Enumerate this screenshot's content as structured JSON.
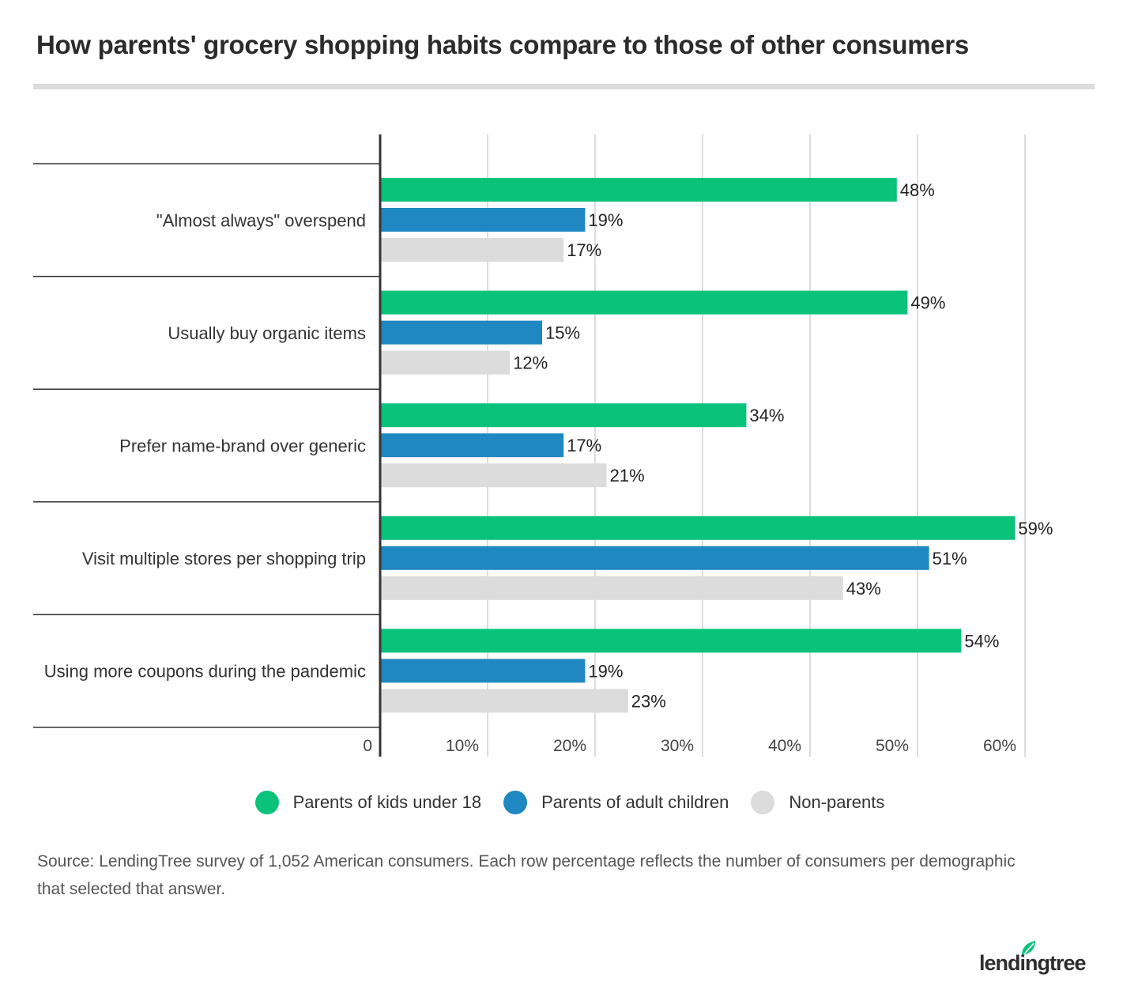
{
  "title": "How parents' grocery shopping habits compare to those of other consumers",
  "colors": {
    "parents_kids_under_18": "#0bc27a",
    "parents_adult_children": "#1f87c2",
    "non_parents": "#dcdcdc",
    "grid": "#dddddd",
    "axis": "#333333"
  },
  "chart_data": {
    "type": "bar",
    "orientation": "horizontal",
    "categories": [
      "\"Almost always\" overspend",
      "Usually buy organic items",
      "Prefer name-brand over generic",
      "Visit multiple stores per shopping trip",
      "Using more coupons during the pandemic"
    ],
    "series": [
      {
        "name": "Parents of kids under 18",
        "color": "#0bc27a",
        "values": [
          48,
          49,
          34,
          59,
          54
        ],
        "labels": [
          "48%",
          "49%",
          "34%",
          "59%",
          "54%"
        ]
      },
      {
        "name": "Parents of adult children",
        "color": "#1f87c2",
        "values": [
          19,
          15,
          17,
          51,
          19
        ],
        "labels": [
          "19%",
          "15%",
          "17%",
          "51%",
          "19%"
        ]
      },
      {
        "name": "Non-parents",
        "color": "#dcdcdc",
        "values": [
          17,
          12,
          21,
          43,
          23
        ],
        "labels": [
          "17%",
          "12%",
          "21%",
          "43%",
          "23%"
        ]
      }
    ],
    "xlim": [
      0,
      60
    ],
    "xticks": [
      0,
      10,
      20,
      30,
      40,
      50,
      60
    ],
    "xtick_labels": [
      "0",
      "10%",
      "20%",
      "30%",
      "40%",
      "50%",
      "60%"
    ],
    "grid": true,
    "legend": "bottom"
  },
  "legend": [
    {
      "label": "Parents of kids under 18",
      "color": "#0bc27a"
    },
    {
      "label": "Parents of adult children",
      "color": "#1f87c2"
    },
    {
      "label": "Non-parents",
      "color": "#dcdcdc"
    }
  ],
  "source": "Source: LendingTree survey of 1,052 American consumers. Each row percentage reflects the number of consumers per demographic that selected that answer.",
  "brand": {
    "name": "lendingtree",
    "color": "#0bc27a"
  }
}
